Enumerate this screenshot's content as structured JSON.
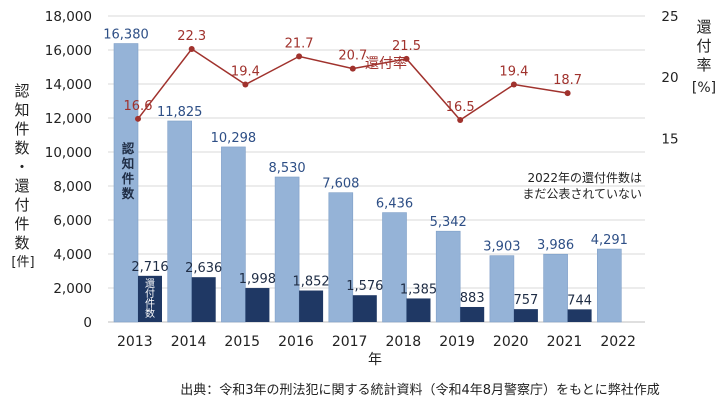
{
  "chart_data": {
    "type": "bar",
    "categories": [
      "2013",
      "2014",
      "2015",
      "2016",
      "2017",
      "2018",
      "2019",
      "2020",
      "2021",
      "2022"
    ],
    "series": [
      {
        "name": "認知件数",
        "type": "bar",
        "values": [
          16380,
          11825,
          10298,
          8530,
          7608,
          6436,
          5342,
          3903,
          3986,
          4291
        ],
        "value_labels": [
          "16,380",
          "11,825",
          "10,298",
          "8,530",
          "7,608",
          "6,436",
          "5,342",
          "3,903",
          "3,986",
          "4,291"
        ],
        "color": "#95b3d7"
      },
      {
        "name": "還付件数",
        "type": "bar",
        "values": [
          2716,
          2636,
          1998,
          1852,
          1576,
          1385,
          883,
          757,
          744,
          null
        ],
        "value_labels": [
          "2,716",
          "2,636",
          "1,998",
          "1,852",
          "1,576",
          "1,385",
          "883",
          "757",
          "744",
          ""
        ],
        "color": "#1f3864"
      },
      {
        "name": "還付率",
        "type": "line",
        "axis": "right",
        "values": [
          16.6,
          22.3,
          19.4,
          21.7,
          20.7,
          21.5,
          16.5,
          19.4,
          18.7,
          null
        ],
        "value_labels": [
          "16.6",
          "22.3",
          "19.4",
          "21.7",
          "20.7",
          "21.5",
          "16.5",
          "19.4",
          "18.7",
          ""
        ],
        "color": "#a0322d"
      }
    ],
    "xlabel": "年",
    "ylabel_left": [
      "認",
      "知",
      "件",
      "数",
      "・",
      "還",
      "付",
      "件",
      "数",
      "[件]"
    ],
    "ylabel_right": [
      "還",
      "付",
      "率",
      "[%]"
    ],
    "ylim_left": [
      0,
      18000
    ],
    "yticks_left": [
      "0",
      "2,000",
      "4,000",
      "6,000",
      "8,000",
      "10,000",
      "12,000",
      "14,000",
      "16,000",
      "18,000"
    ],
    "ylim_right": [
      0,
      25
    ],
    "yticks_right": [
      "15",
      "20",
      "25"
    ],
    "yticks_right_values": [
      15,
      20,
      25
    ],
    "grid": true,
    "annotations": {
      "ninchi_in_bar": [
        "認",
        "知",
        "件",
        "数"
      ],
      "kanpu_in_bar": [
        "還",
        "付",
        "件",
        "数"
      ],
      "line_label": "還付率",
      "note_lines": [
        "2022年の還付件数は",
        "まだ公表されていない"
      ]
    },
    "source": "出典：令和3年の刑法犯に関する統計資料（令和4年8月警察庁）をもとに弊社作成"
  }
}
